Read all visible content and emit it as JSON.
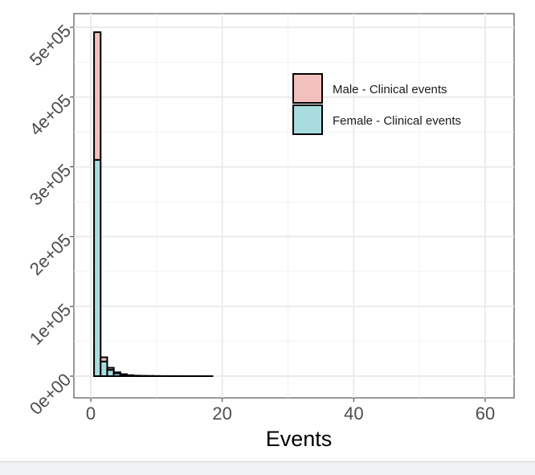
{
  "chart_data": {
    "type": "bar",
    "stacked": true,
    "title": "",
    "xlabel": "Events",
    "ylabel": "",
    "xlim": [
      -2,
      65
    ],
    "ylim": [
      -15000,
      525000
    ],
    "x_ticks": [
      0,
      20,
      40,
      60
    ],
    "x_tick_labels": [
      "0",
      "20",
      "40",
      "60"
    ],
    "y_ticks": [
      0,
      100000,
      200000,
      300000,
      400000,
      500000
    ],
    "y_tick_labels": [
      "0e+00",
      "1e+05",
      "2e+05",
      "3e+05",
      "4e+05",
      "5e+05"
    ],
    "grid": true,
    "legend_position": "top-right inside",
    "bin_width": 1,
    "x": [
      1,
      2,
      3,
      4,
      5,
      6,
      7,
      8,
      9,
      10,
      11,
      12,
      13,
      14,
      15,
      16,
      17,
      18,
      19,
      20,
      21,
      22,
      23,
      24,
      25,
      26,
      27,
      28,
      29,
      30,
      31,
      32,
      33,
      34,
      35,
      36,
      37,
      38,
      39,
      40,
      41,
      42,
      43,
      44,
      45,
      46,
      47,
      48,
      49,
      50,
      51,
      52,
      53,
      54,
      55,
      56,
      57,
      58,
      59,
      60,
      61,
      62
    ],
    "series": [
      {
        "name": "Female - Clinical events",
        "color": "#a8dcdf",
        "values": [
          310000,
          21000,
          9000,
          4000,
          2000,
          1000,
          500,
          300,
          200,
          100,
          60,
          40,
          30,
          20,
          10,
          10,
          5,
          5,
          0,
          0,
          0,
          0,
          0,
          0,
          0,
          0,
          0,
          0,
          0,
          0,
          0,
          0,
          0,
          0,
          0,
          0,
          0,
          0,
          0,
          0,
          0,
          0,
          0,
          0,
          0,
          0,
          0,
          0,
          0,
          0,
          0,
          0,
          0,
          0,
          0,
          0,
          0,
          0,
          0,
          0,
          0,
          0
        ]
      },
      {
        "name": "Male - Clinical events",
        "color": "#f2c1bd",
        "values": [
          183000,
          6000,
          3000,
          1500,
          800,
          400,
          200,
          100,
          50,
          30,
          20,
          10,
          10,
          5,
          5,
          0,
          0,
          0,
          0,
          0,
          0,
          0,
          0,
          0,
          0,
          0,
          0,
          0,
          0,
          0,
          0,
          0,
          0,
          0,
          0,
          0,
          0,
          0,
          0,
          0,
          0,
          0,
          0,
          0,
          0,
          0,
          0,
          0,
          0,
          0,
          0,
          0,
          0,
          0,
          0,
          0,
          0,
          0,
          0,
          0,
          0,
          0
        ]
      }
    ]
  }
}
